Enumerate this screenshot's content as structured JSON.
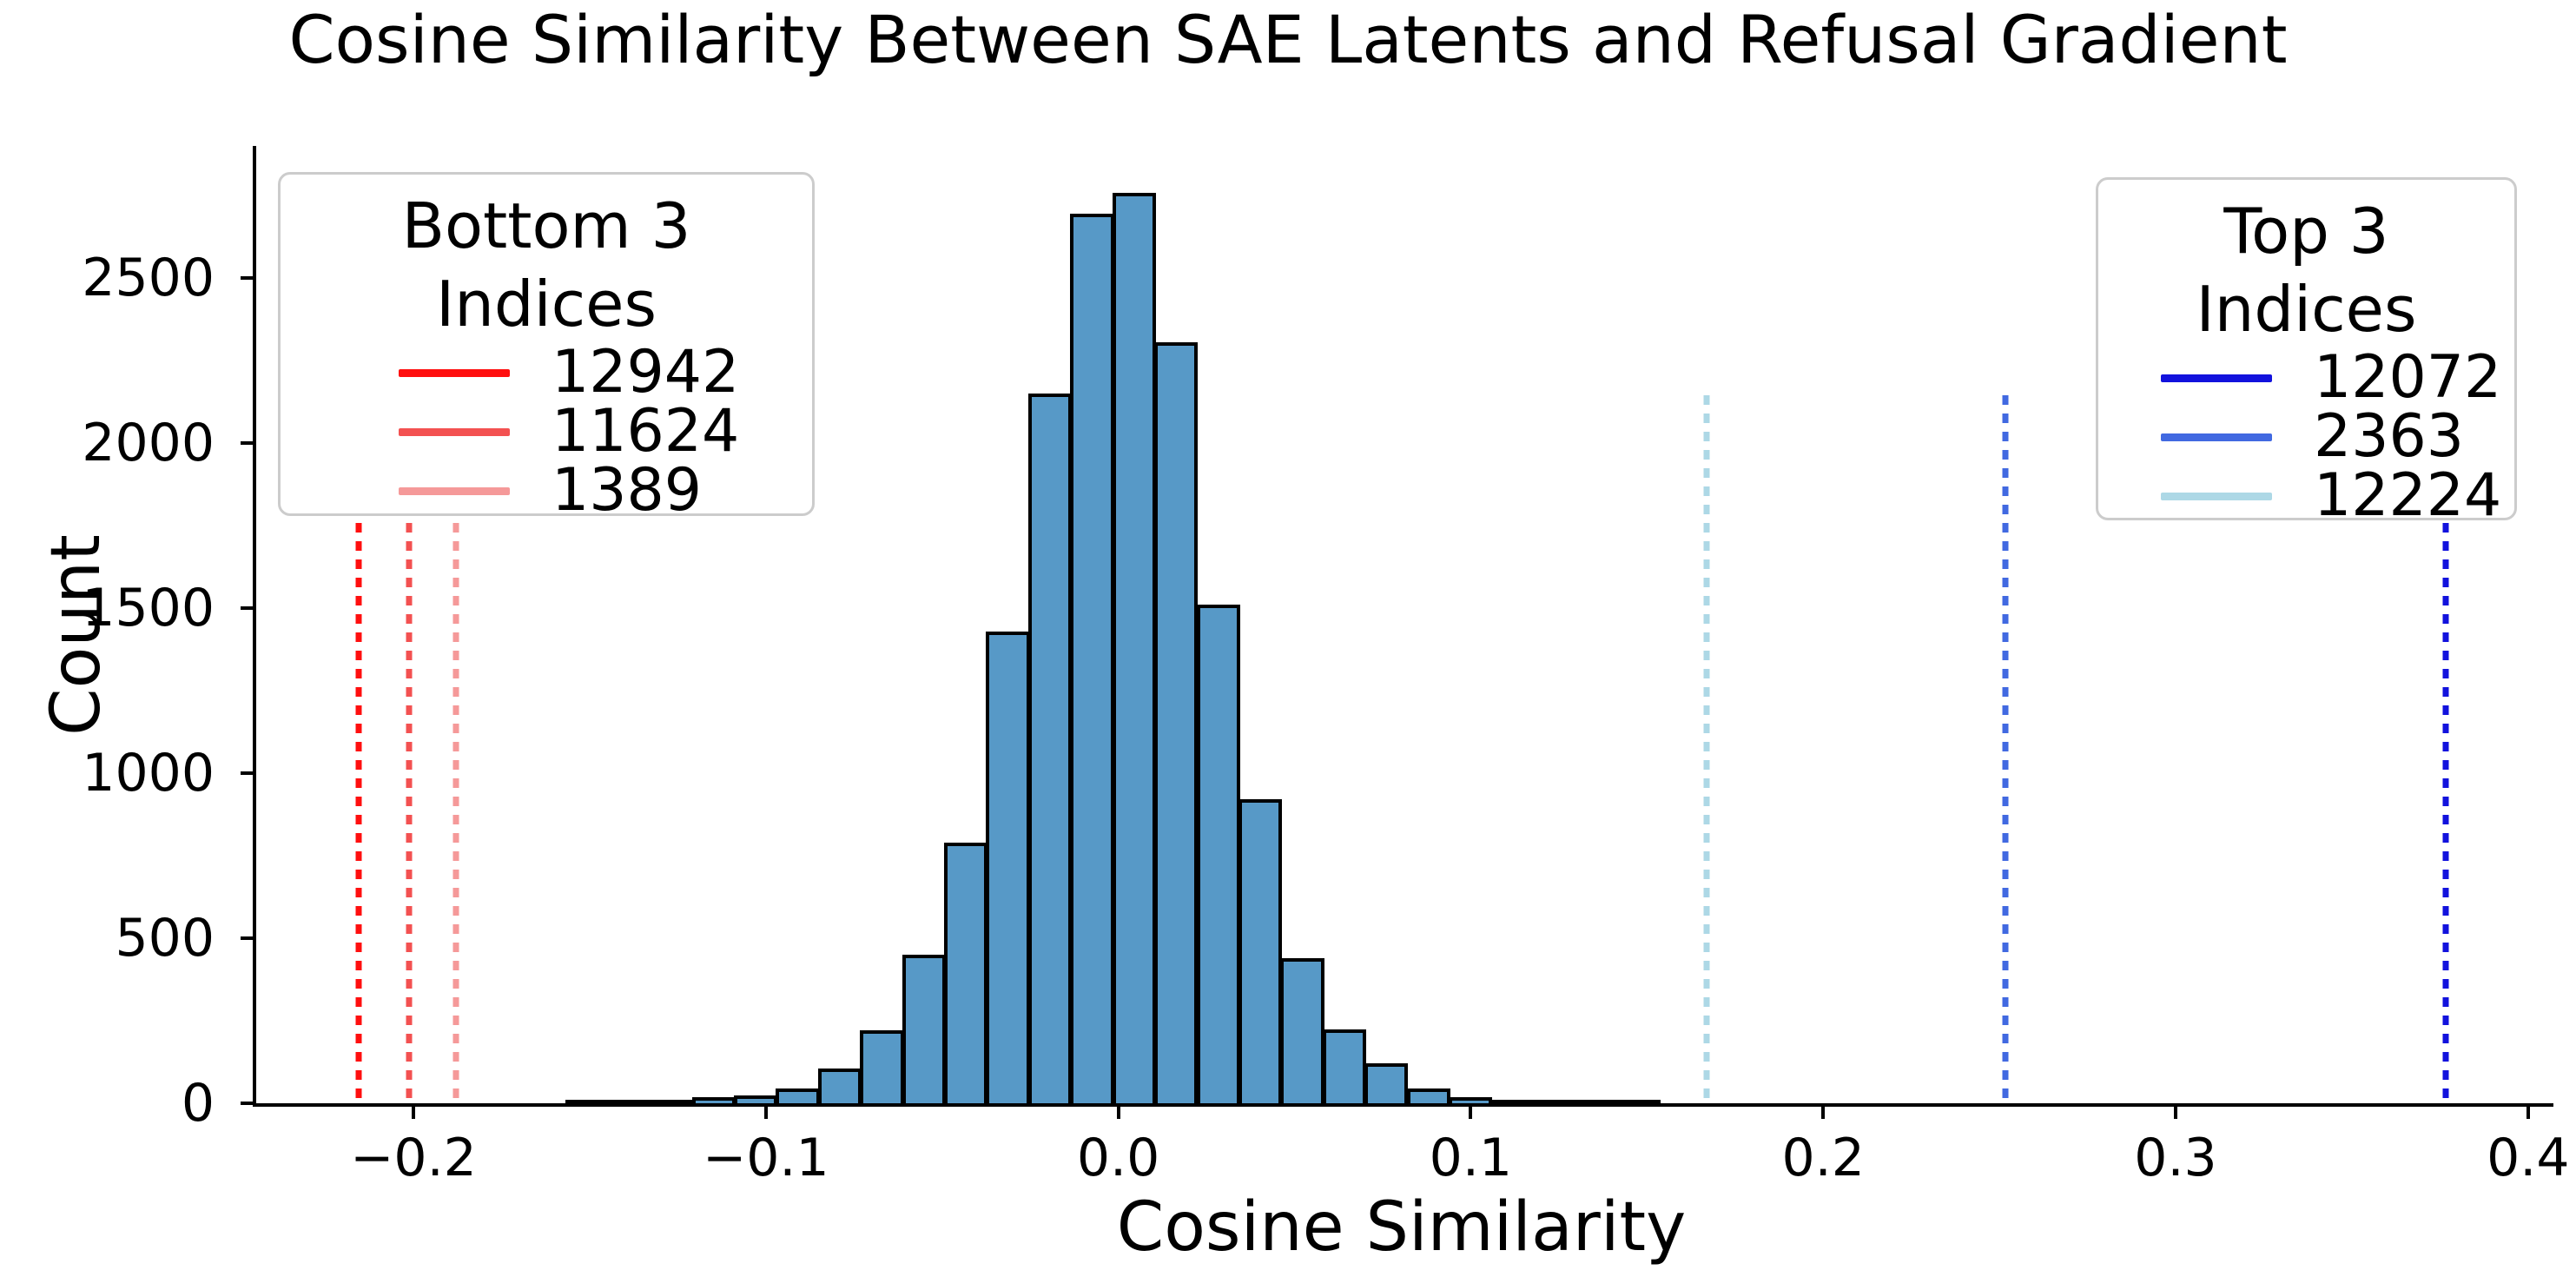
{
  "title": "Cosine Similarity Between SAE Latents and Refusal Gradient",
  "axes": {
    "xlabel": "Cosine Similarity",
    "ylabel": "Count",
    "xlim": [
      -0.2446,
      0.4072
    ],
    "ylim": [
      0,
      2900
    ],
    "x_ticks": [
      {
        "label": "−0.2",
        "value": -0.2
      },
      {
        "label": "−0.1",
        "value": -0.1
      },
      {
        "label": "0.0",
        "value": 0.0
      },
      {
        "label": "0.1",
        "value": 0.1
      },
      {
        "label": "0.2",
        "value": 0.2
      },
      {
        "label": "0.3",
        "value": 0.3
      },
      {
        "label": "0.4",
        "value": 0.4
      }
    ],
    "y_ticks": [
      {
        "label": "0",
        "value": 0
      },
      {
        "label": "500",
        "value": 500
      },
      {
        "label": "1000",
        "value": 1000
      },
      {
        "label": "1500",
        "value": 1500
      },
      {
        "label": "2000",
        "value": 2000
      },
      {
        "label": "2500",
        "value": 2500
      }
    ]
  },
  "legends": {
    "bottom": {
      "title": "Bottom 3 Indices"
    },
    "top": {
      "title": "Top 3 Indices"
    }
  },
  "chart_data": {
    "type": "bar",
    "subtype": "histogram",
    "title": "Cosine Similarity Between SAE Latents and Refusal Gradient",
    "xlabel": "Cosine Similarity",
    "ylabel": "Count",
    "grid": false,
    "bar_color": "#5799c7",
    "bar_edge_color": "#000000",
    "bin_start": -0.1568,
    "bin_width": 0.01193,
    "counts": [
      3,
      5,
      10,
      18,
      25,
      45,
      105,
      220,
      450,
      790,
      1430,
      2150,
      2695,
      2757,
      2306,
      1510,
      920,
      440,
      225,
      120,
      45,
      18,
      8,
      7,
      3,
      2
    ],
    "vline_top_count": 2145,
    "vlines": [
      {
        "group": "bottom",
        "label": "12942",
        "x": -0.2155,
        "color": "#ff0f0f",
        "style": "dotted"
      },
      {
        "group": "bottom",
        "label": "11624",
        "x": -0.2012,
        "color": "#f35151",
        "style": "dotted"
      },
      {
        "group": "bottom",
        "label": "1389",
        "x": -0.1879,
        "color": "#f59999",
        "style": "dotted"
      },
      {
        "group": "top",
        "label": "12072",
        "x": 0.3766,
        "color": "#1212dd",
        "style": "dotted"
      },
      {
        "group": "top",
        "label": "2363",
        "x": 0.2517,
        "color": "#4169e1",
        "style": "dotted"
      },
      {
        "group": "top",
        "label": "12224",
        "x": 0.1668,
        "color": "#add8e6",
        "style": "dotted"
      }
    ]
  }
}
